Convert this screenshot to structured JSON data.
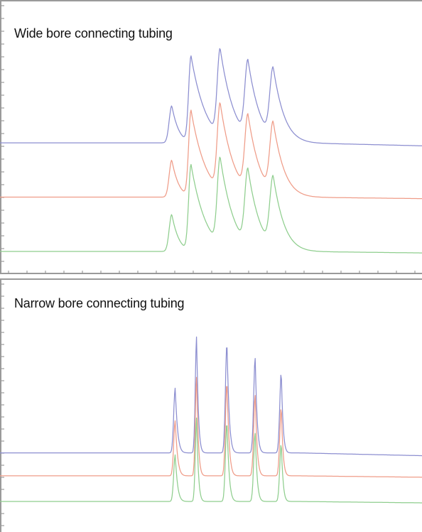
{
  "chart_data": [
    {
      "type": "line",
      "title": "Wide bore connecting tubing",
      "xlabel": "",
      "ylabel": "",
      "grid": false,
      "baseline_offset": [
        0,
        1.9,
        3.8
      ],
      "ylim": [
        0,
        8.3
      ],
      "xlim": [
        0,
        100
      ],
      "peaks": [
        {
          "x": 40.5,
          "height": 1.3,
          "rise": 0.6,
          "tail": 1.7
        },
        {
          "x": 45.0,
          "height": 3.0,
          "rise": 0.55,
          "tail": 3.6
        },
        {
          "x": 51.8,
          "height": 3.0,
          "rise": 0.65,
          "tail": 3.4
        },
        {
          "x": 58.3,
          "height": 2.6,
          "rise": 0.7,
          "tail": 3.0
        },
        {
          "x": 64.2,
          "height": 2.4,
          "rise": 0.75,
          "tail": 2.8
        }
      ],
      "series": [
        {
          "name": "",
          "color": "#8c8ed0",
          "offset": 3.8,
          "scale": 1.0
        },
        {
          "name": "",
          "color": "#ef9c88",
          "offset": 1.9,
          "scale": 1.0
        },
        {
          "name": "",
          "color": "#8fce8e",
          "offset": 0.0,
          "scale": 1.0
        }
      ]
    },
    {
      "type": "line",
      "title": "Narrow bore connecting tubing",
      "xlabel": "",
      "ylabel": "",
      "grid": false,
      "ylim": [
        0,
        8.0
      ],
      "xlim": [
        0,
        100
      ],
      "peaks": [
        {
          "x": 41.3,
          "height": 2.4,
          "rise": 0.35,
          "tail": 0.6
        },
        {
          "x": 46.3,
          "height": 4.3,
          "rise": 0.3,
          "tail": 0.45
        },
        {
          "x": 53.4,
          "height": 4.1,
          "rise": 0.35,
          "tail": 0.55
        },
        {
          "x": 60.0,
          "height": 3.5,
          "rise": 0.35,
          "tail": 0.5
        },
        {
          "x": 66.1,
          "height": 3.0,
          "rise": 0.35,
          "tail": 0.45
        }
      ],
      "series": [
        {
          "name": "",
          "color": "#8c8ed0",
          "offset": 1.8,
          "scale": 1.0
        },
        {
          "name": "",
          "color": "#ef9c88",
          "offset": 0.95,
          "scale": 0.85
        },
        {
          "name": "",
          "color": "#8fce8e",
          "offset": 0.0,
          "scale": 0.72
        }
      ]
    }
  ]
}
